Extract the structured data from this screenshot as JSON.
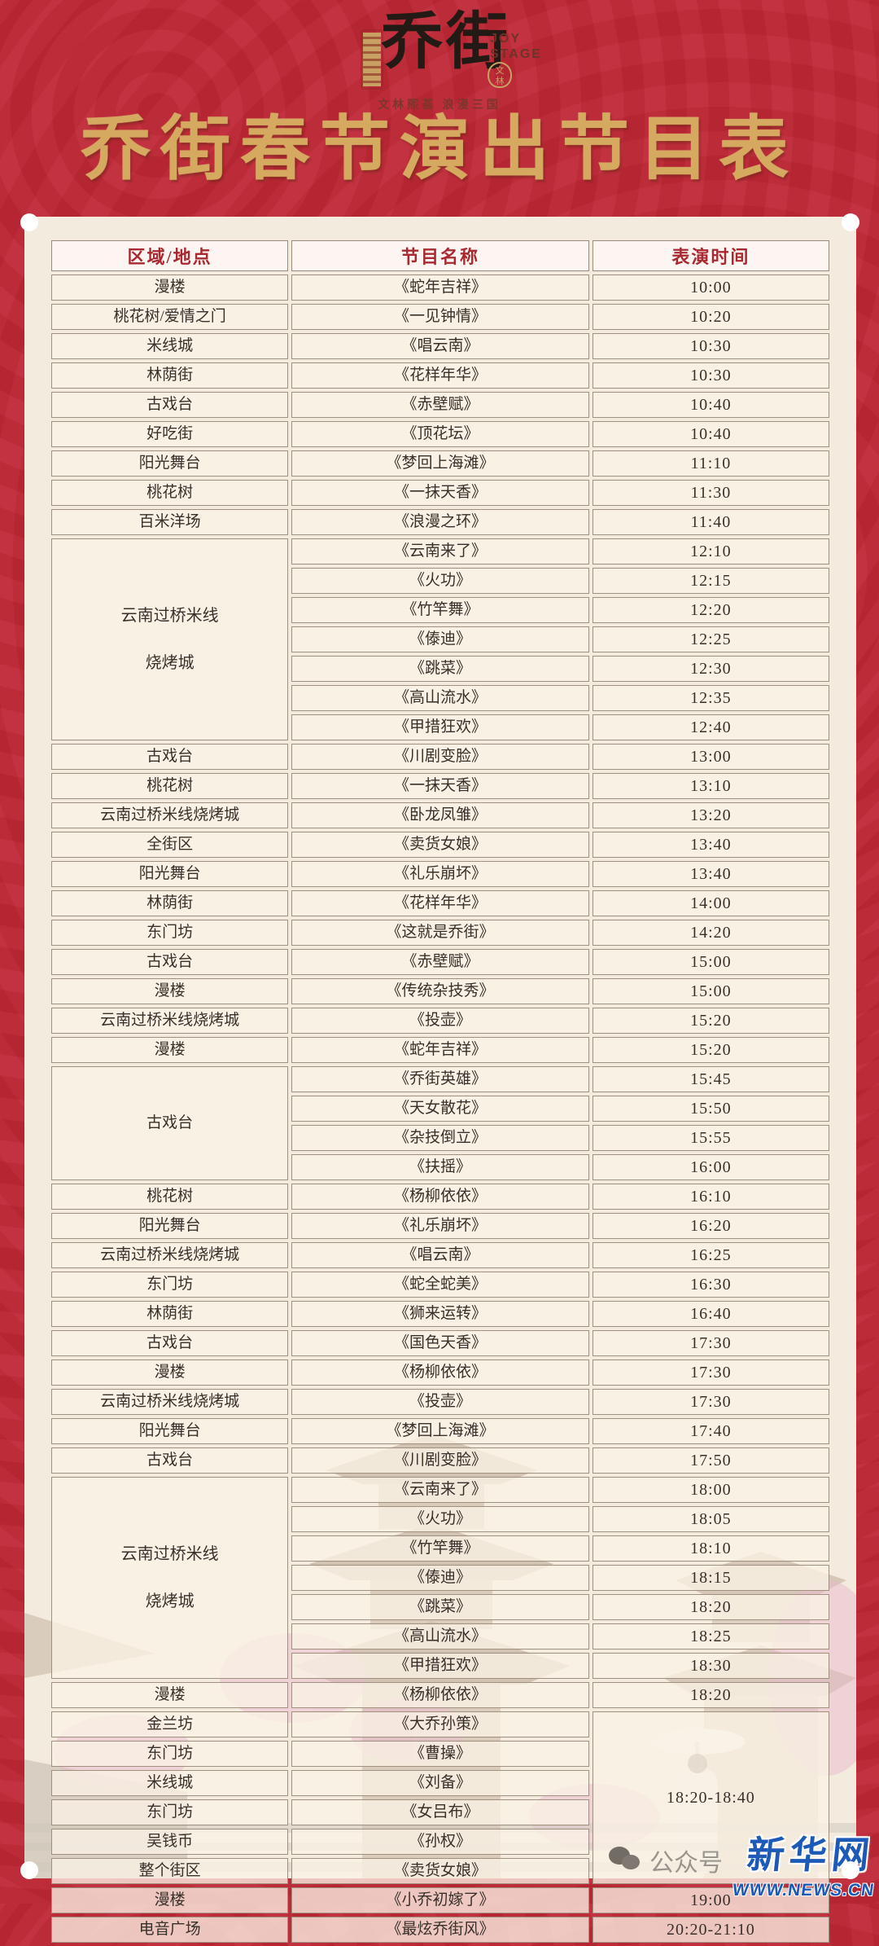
{
  "header": {
    "brand": "乔街",
    "brand_en_1": "JOY",
    "brand_en_2": "STAGE",
    "seal_text": "文\n林",
    "tagline": "文林熙荟  浪漫三国",
    "title": "乔街春节演出节目表"
  },
  "table": {
    "columns": [
      "区域/地点",
      "节目名称",
      "表演时间"
    ],
    "rows": [
      {
        "loc": "漫楼",
        "prog": "《蛇年吉祥》",
        "time": "10:00"
      },
      {
        "loc": "桃花树/爱情之门",
        "prog": "《一见钟情》",
        "time": "10:20"
      },
      {
        "loc": "米线城",
        "prog": "《唱云南》",
        "time": "10:30"
      },
      {
        "loc": "林荫街",
        "prog": "《花样年华》",
        "time": "10:30"
      },
      {
        "loc": "古戏台",
        "prog": "《赤壁赋》",
        "time": "10:40"
      },
      {
        "loc": "好吃街",
        "prog": "《顶花坛》",
        "time": "10:40"
      },
      {
        "loc": "阳光舞台",
        "prog": "《梦回上海滩》",
        "time": "11:10"
      },
      {
        "loc": "桃花树",
        "prog": "《一抹天香》",
        "time": "11:30"
      },
      {
        "loc": "百米洋场",
        "prog": "《浪漫之环》",
        "time": "11:40"
      },
      {
        "loc": "云南过桥米线\n烧烤城",
        "locSpan": 7,
        "prog": "《云南来了》",
        "time": "12:10"
      },
      {
        "prog": "《火功》",
        "time": "12:15"
      },
      {
        "prog": "《竹竿舞》",
        "time": "12:20"
      },
      {
        "prog": "《傣迪》",
        "time": "12:25"
      },
      {
        "prog": "《跳菜》",
        "time": "12:30"
      },
      {
        "prog": "《高山流水》",
        "time": "12:35"
      },
      {
        "prog": "《甲措狂欢》",
        "time": "12:40"
      },
      {
        "loc": "古戏台",
        "prog": "《川剧变脸》",
        "time": "13:00"
      },
      {
        "loc": "桃花树",
        "prog": "《一抹天香》",
        "time": "13:10"
      },
      {
        "loc": "云南过桥米线烧烤城",
        "prog": "《卧龙凤雏》",
        "time": "13:20"
      },
      {
        "loc": "全街区",
        "prog": "《卖货女娘》",
        "time": "13:40"
      },
      {
        "loc": "阳光舞台",
        "prog": "《礼乐崩坏》",
        "time": "13:40"
      },
      {
        "loc": "林荫街",
        "prog": "《花样年华》",
        "time": "14:00"
      },
      {
        "loc": "东门坊",
        "prog": "《这就是乔街》",
        "time": "14:20"
      },
      {
        "loc": "古戏台",
        "prog": "《赤壁赋》",
        "time": "15:00"
      },
      {
        "loc": "漫楼",
        "prog": "《传统杂技秀》",
        "time": "15:00"
      },
      {
        "loc": "云南过桥米线烧烤城",
        "prog": "《投壶》",
        "time": "15:20"
      },
      {
        "loc": "漫楼",
        "prog": "《蛇年吉祥》",
        "time": "15:20"
      },
      {
        "loc": "古戏台",
        "locSpan": 4,
        "prog": "《乔街英雄》",
        "time": "15:45"
      },
      {
        "prog": "《天女散花》",
        "time": "15:50"
      },
      {
        "prog": "《杂技倒立》",
        "time": "15:55"
      },
      {
        "prog": "《扶摇》",
        "time": "16:00"
      },
      {
        "loc": "桃花树",
        "prog": "《杨柳依依》",
        "time": "16:10"
      },
      {
        "loc": "阳光舞台",
        "prog": "《礼乐崩坏》",
        "time": "16:20"
      },
      {
        "loc": "云南过桥米线烧烤城",
        "prog": "《唱云南》",
        "time": "16:25"
      },
      {
        "loc": "东门坊",
        "prog": "《蛇全蛇美》",
        "time": "16:30"
      },
      {
        "loc": "林荫街",
        "prog": "《狮来运转》",
        "time": "16:40"
      },
      {
        "loc": "古戏台",
        "prog": "《国色天香》",
        "time": "17:30"
      },
      {
        "loc": "漫楼",
        "prog": "《杨柳依依》",
        "time": "17:30"
      },
      {
        "loc": "云南过桥米线烧烤城",
        "prog": "《投壶》",
        "time": "17:30"
      },
      {
        "loc": "阳光舞台",
        "prog": "《梦回上海滩》",
        "time": "17:40"
      },
      {
        "loc": "古戏台",
        "prog": "《川剧变脸》",
        "time": "17:50"
      },
      {
        "loc": "云南过桥米线\n烧烤城",
        "locSpan": 7,
        "prog": "《云南来了》",
        "time": "18:00"
      },
      {
        "prog": "《火功》",
        "time": "18:05"
      },
      {
        "prog": "《竹竿舞》",
        "time": "18:10"
      },
      {
        "prog": "《傣迪》",
        "time": "18:15"
      },
      {
        "prog": "《跳菜》",
        "time": "18:20"
      },
      {
        "prog": "《高山流水》",
        "time": "18:25"
      },
      {
        "prog": "《甲措狂欢》",
        "time": "18:30"
      },
      {
        "loc": "漫楼",
        "prog": "《杨柳依依》",
        "time": "18:20"
      },
      {
        "loc": "金兰坊",
        "prog": "《大乔孙策》",
        "time": "18:20-18:40",
        "timeSpan": 6
      },
      {
        "loc": "东门坊",
        "prog": "《曹操》"
      },
      {
        "loc": "米线城",
        "prog": "《刘备》"
      },
      {
        "loc": "东门坊",
        "prog": "《女吕布》"
      },
      {
        "loc": "吴钱币",
        "prog": "《孙权》"
      },
      {
        "loc": "整个街区",
        "prog": "《卖货女娘》"
      },
      {
        "loc": "漫楼",
        "prog": "《小乔初嫁了》",
        "time": "19:00"
      },
      {
        "loc": "电音广场",
        "prog": "《最炫乔街风》",
        "time": "20:20-21:10"
      }
    ]
  },
  "footer": {
    "watermark_label": "公众号",
    "site_name": "新华网",
    "site_url": "WWW.NEWS.CN"
  },
  "colors": {
    "background_red": "#c02a38",
    "title_gold": "#d5a95f",
    "header_text_red": "#a8292f",
    "panel_cream": "#f3ebde",
    "cell_cream": "#f8f0e3",
    "xinhua_blue": "#1d59b6"
  }
}
